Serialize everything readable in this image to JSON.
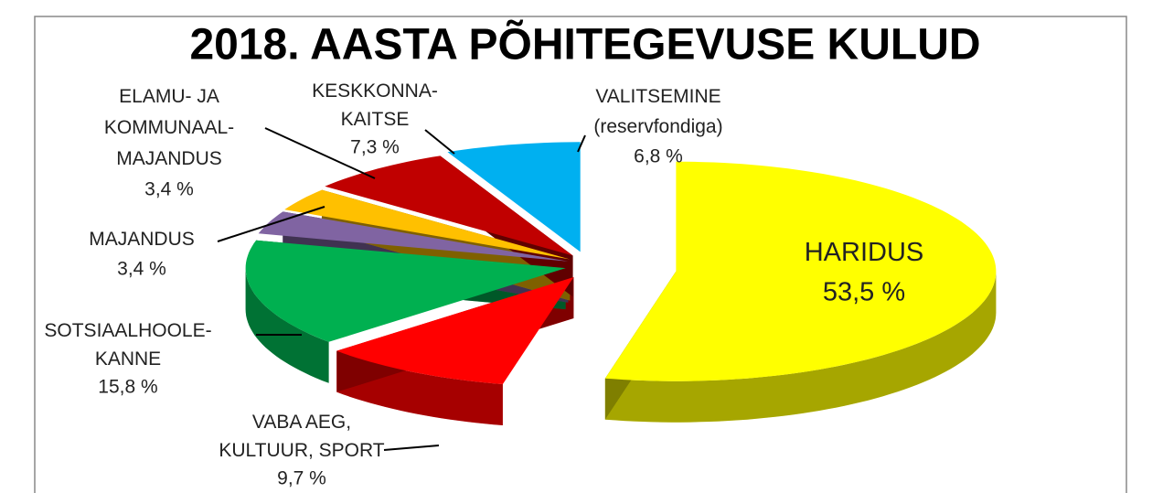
{
  "chart_data": {
    "type": "pie",
    "title": "2018. AASTA PÕHITEGEVUSE KULUD",
    "categories": [
      "HARIDUS",
      "VABA AEG,\nKULTUUR, SPORT",
      "SOTSIAALHOOLE-\nKANNE",
      "MAJANDUS",
      "ELAMU- JA\nKOMMUNAAL-\nMAJANDUS",
      "KESKKONNA-\nKAITSE",
      "VALITSEMINE\n(reservfondiga)"
    ],
    "values": [
      53.5,
      9.7,
      15.8,
      3.4,
      3.4,
      7.3,
      6.8
    ],
    "value_labels": [
      "53,5 %",
      "9,7 %",
      "15,8 %",
      "3,4 %",
      "3,4 %",
      "7,3 %",
      "6,8 %"
    ],
    "colors": [
      "#ffff00",
      "#ff0000",
      "#00b050",
      "#8064a2",
      "#ffc000",
      "#c00000",
      "#00b0f0"
    ]
  }
}
